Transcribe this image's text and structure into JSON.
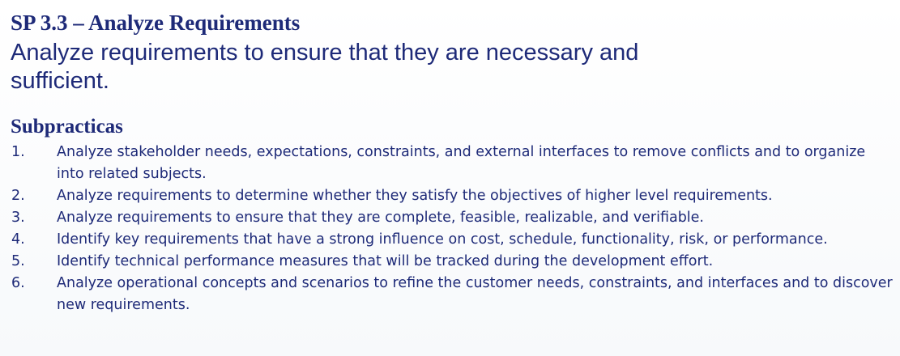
{
  "slide": {
    "title": "SP 3.3 – Analyze Requirements",
    "goal": "Analyze requirements to ensure that they are necessary and sufficient.",
    "subpractices_heading": "Subpracticas",
    "subpractices": [
      {
        "number": "1.",
        "text": "Analyze stakeholder needs, expectations, constraints, and external interfaces to remove conflicts and to organize into related subjects."
      },
      {
        "number": "2.",
        "text": "Analyze requirements to determine whether they satisfy the objectives of higher level requirements."
      },
      {
        "number": "3.",
        "text": "Analyze requirements to ensure that they are complete, feasible, realizable, and verifiable."
      },
      {
        "number": "4.",
        "text": "Identify key requirements that have a strong influence on cost, schedule, functionality, risk, or performance."
      },
      {
        "number": "5.",
        "text": "Identify technical performance measures that will be tracked during the development effort."
      },
      {
        "number": "6.",
        "text": "Analyze operational concepts and scenarios to refine the customer needs, constraints, and interfaces and to discover new requirements."
      }
    ]
  }
}
